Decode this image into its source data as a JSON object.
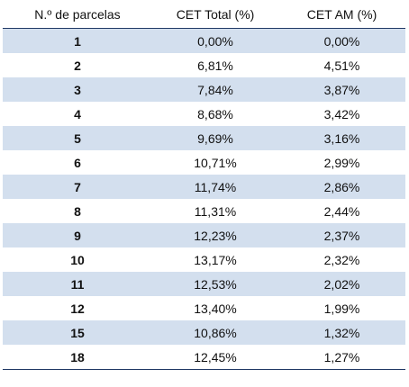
{
  "table": {
    "headers": [
      "N.º de parcelas",
      "CET Total (%)",
      "CET AM (%)"
    ],
    "rows": [
      [
        "1",
        "0,00%",
        "0,00%"
      ],
      [
        "2",
        "6,81%",
        "4,51%"
      ],
      [
        "3",
        "7,84%",
        "3,87%"
      ],
      [
        "4",
        "8,68%",
        "3,42%"
      ],
      [
        "5",
        "9,69%",
        "3,16%"
      ],
      [
        "6",
        "10,71%",
        "2,99%"
      ],
      [
        "7",
        "11,74%",
        "2,86%"
      ],
      [
        "8",
        "11,31%",
        "2,44%"
      ],
      [
        "9",
        "12,23%",
        "2,37%"
      ],
      [
        "10",
        "13,17%",
        "2,32%"
      ],
      [
        "11",
        "12,53%",
        "2,02%"
      ],
      [
        "12",
        "13,40%",
        "1,99%"
      ],
      [
        "15",
        "10,86%",
        "1,32%"
      ],
      [
        "18",
        "12,45%",
        "1,27%"
      ]
    ]
  },
  "colors": {
    "band": "#d3dfee",
    "rule": "#1f3864"
  }
}
